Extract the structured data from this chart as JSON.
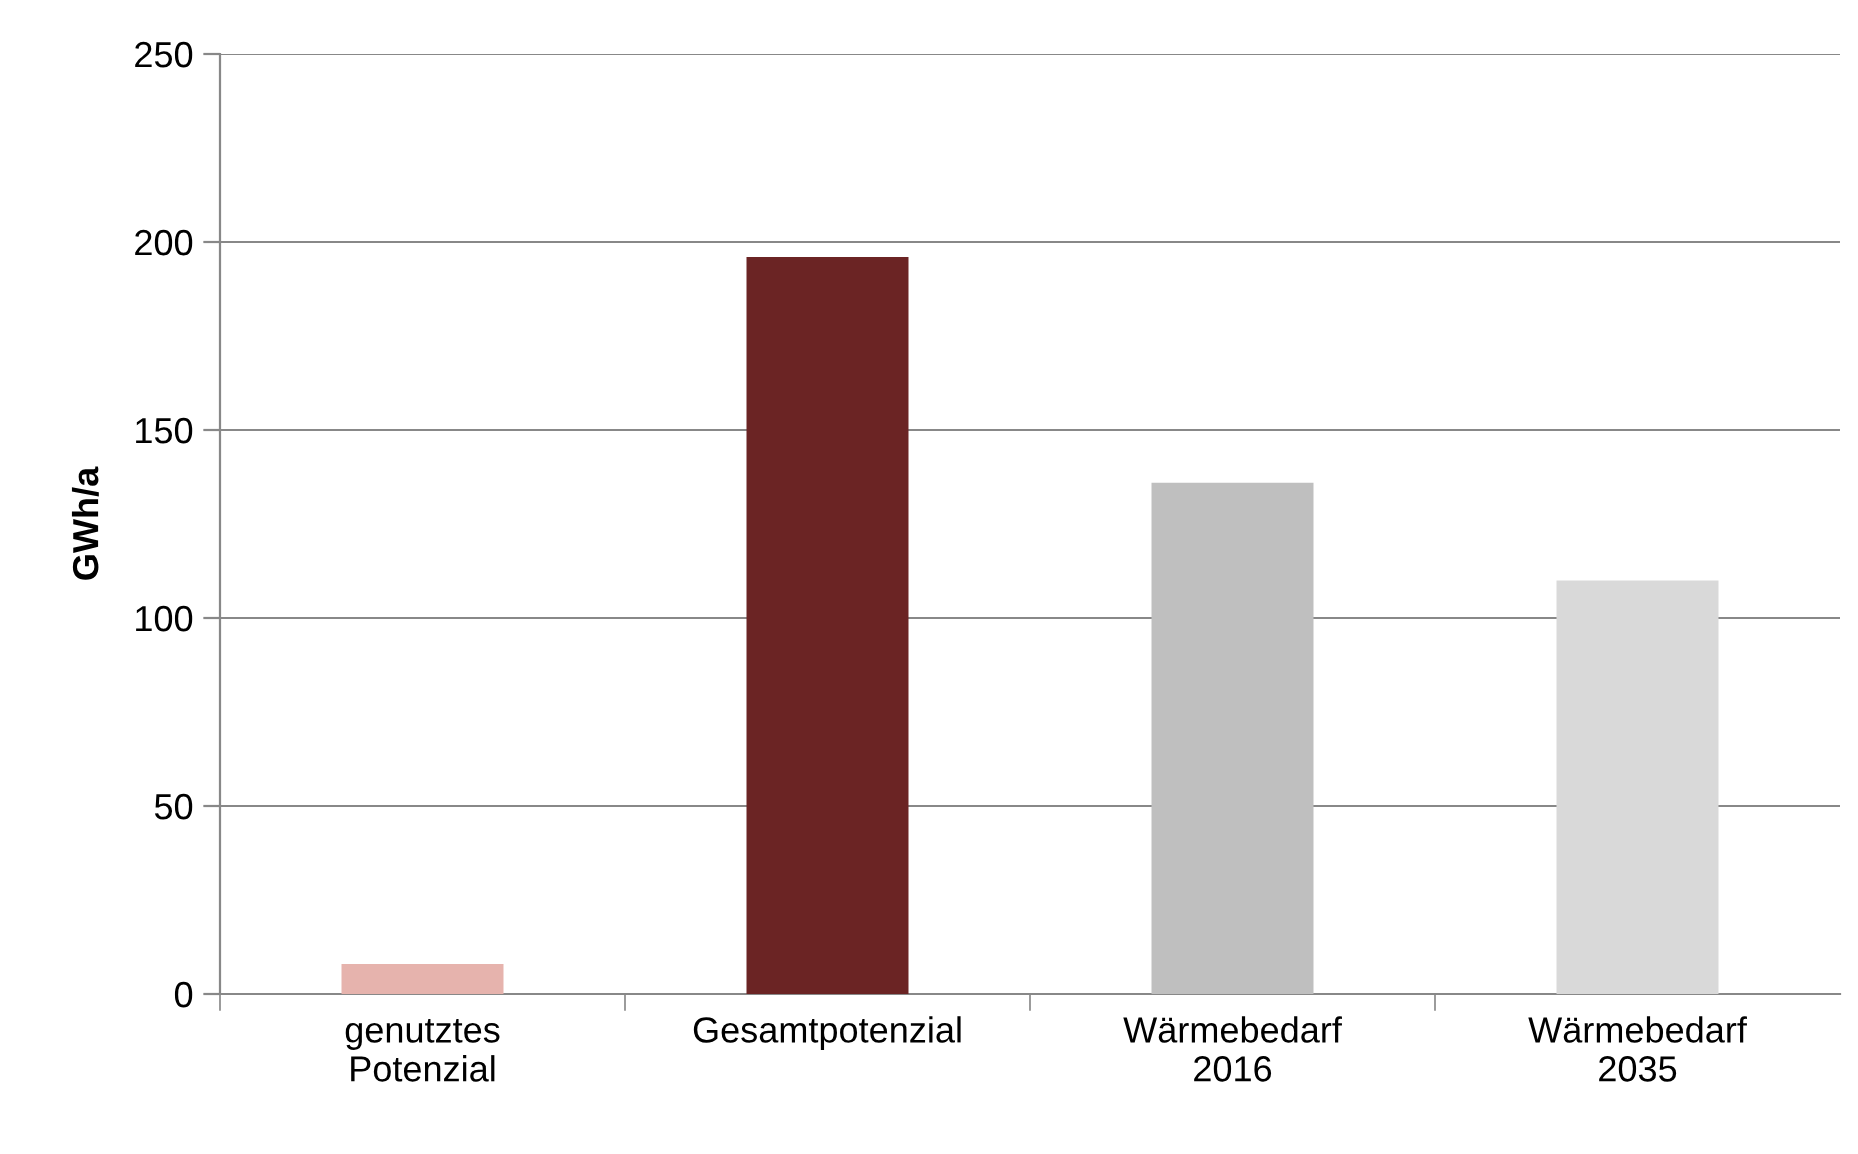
{
  "chart_data": {
    "type": "bar",
    "ylabel": "GWh/a",
    "categories": [
      "genutztes\nPotenzial",
      "Gesamtpotenzial",
      "Wärmebedarf\n2016",
      "Wärmebedarf\n2035"
    ],
    "values": [
      8,
      196,
      136,
      110
    ],
    "colors": [
      "#e6b3ad",
      "#6b2424",
      "#bfbfbf",
      "#d9d9d9"
    ],
    "ylim": [
      0,
      250
    ],
    "yticks": [
      0,
      50,
      100,
      150,
      200,
      250
    ],
    "grid": "y"
  }
}
